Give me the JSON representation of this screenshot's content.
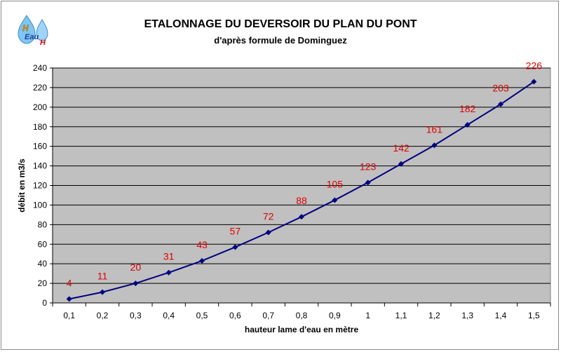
{
  "logo": {
    "text_h": "H",
    "text_eau": "Eau",
    "text_h2": "H"
  },
  "chart_data": {
    "type": "line",
    "title": "ETALONNAGE DU DEVERSOIR DU PLAN DU PONT",
    "subtitle": "d'après formule de Dominguez",
    "xlabel": "hauteur lame d'eau en mètre",
    "ylabel": "débit en m3/s",
    "categories": [
      "0,1",
      "0,2",
      "0,3",
      "0,4",
      "0,5",
      "0,6",
      "0,7",
      "0,8",
      "0,9",
      "1",
      "1,1",
      "1,2",
      "1,3",
      "1,4",
      "1,5"
    ],
    "values": [
      4,
      11,
      20,
      31,
      43,
      57,
      72,
      88,
      105,
      123,
      142,
      161,
      182,
      203,
      226
    ],
    "ylim": [
      0,
      240
    ],
    "yticks": [
      0,
      20,
      40,
      60,
      80,
      100,
      120,
      140,
      160,
      180,
      200,
      220,
      240
    ],
    "grid": true,
    "colors": {
      "line": "#000080",
      "labels": "#e00000",
      "plot_bg": "#c0c0c0",
      "grid": "#000000"
    }
  }
}
